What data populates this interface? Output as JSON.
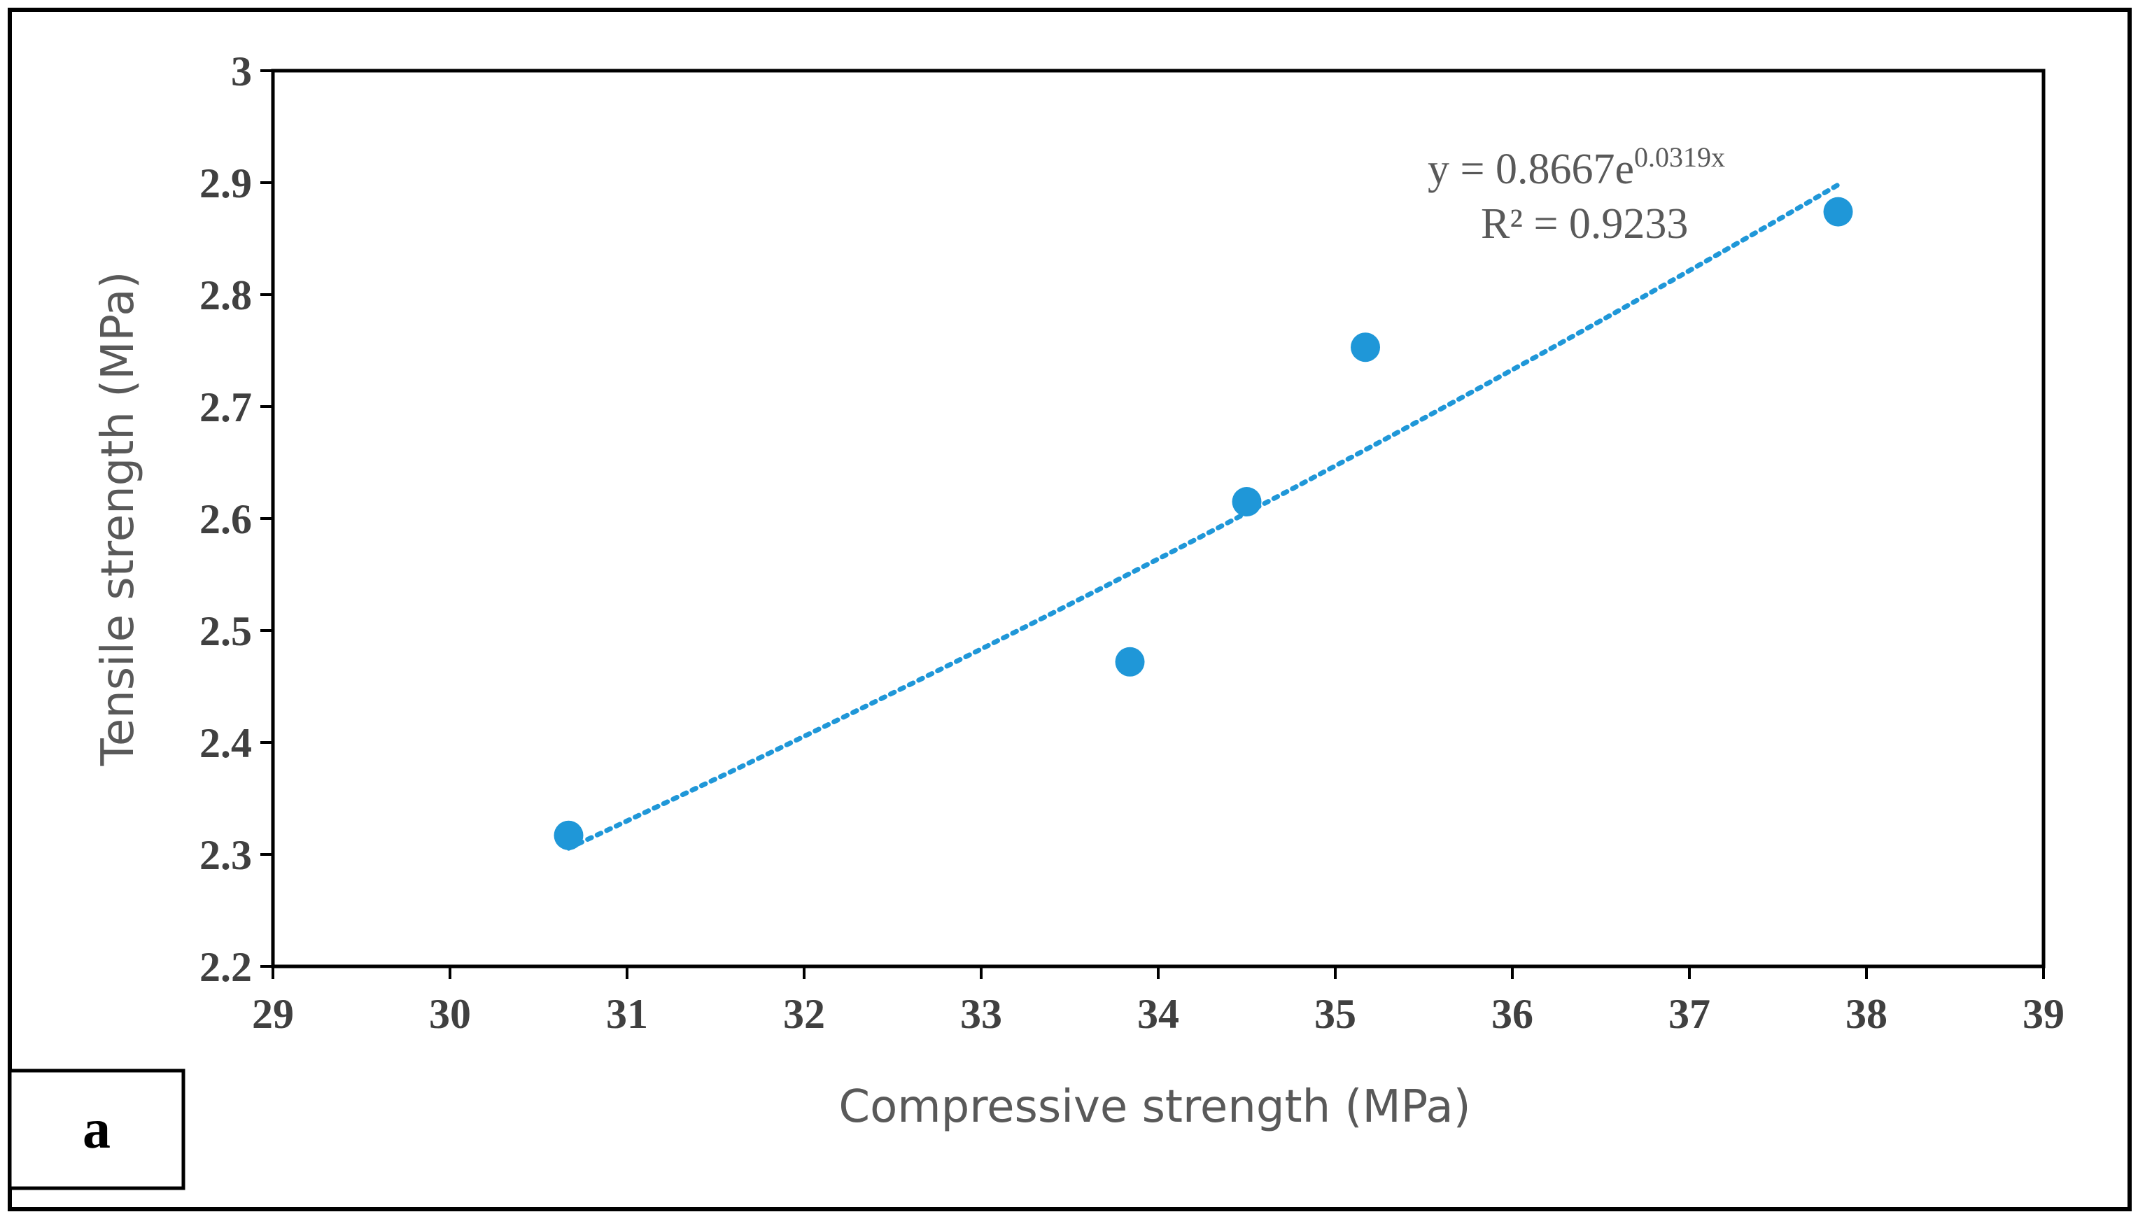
{
  "chart_data": {
    "type": "scatter",
    "title": "",
    "xlabel": "Compressive strength (MPa)",
    "ylabel": "Tensile strength (MPa)",
    "xlim": [
      29,
      39
    ],
    "ylim": [
      2.2,
      3.0
    ],
    "x_ticks": [
      "29",
      "30",
      "31",
      "32",
      "33",
      "34",
      "35",
      "36",
      "37",
      "38",
      "39"
    ],
    "y_ticks": [
      "2.2",
      "2.3",
      "2.4",
      "2.5",
      "2.6",
      "2.7",
      "2.8",
      "2.9",
      "3"
    ],
    "grid": false,
    "legend": "none",
    "series": [
      {
        "name": "data",
        "color": "#1f97d8",
        "points": [
          {
            "x": 30.67,
            "y": 2.317
          },
          {
            "x": 33.84,
            "y": 2.472
          },
          {
            "x": 34.5,
            "y": 2.615
          },
          {
            "x": 35.17,
            "y": 2.753
          },
          {
            "x": 37.84,
            "y": 2.874
          }
        ]
      }
    ],
    "trendline": {
      "type": "exponential",
      "a": 0.8667,
      "b": 0.0319,
      "x_range": [
        30.67,
        37.84
      ],
      "color": "#1f97d8",
      "style": "dotted"
    },
    "annotations": {
      "equation_base": "y = 0.8667e",
      "equation_exp": "0.0319x",
      "r_squared": "R² = 0.9233"
    },
    "panel_label": "a"
  }
}
